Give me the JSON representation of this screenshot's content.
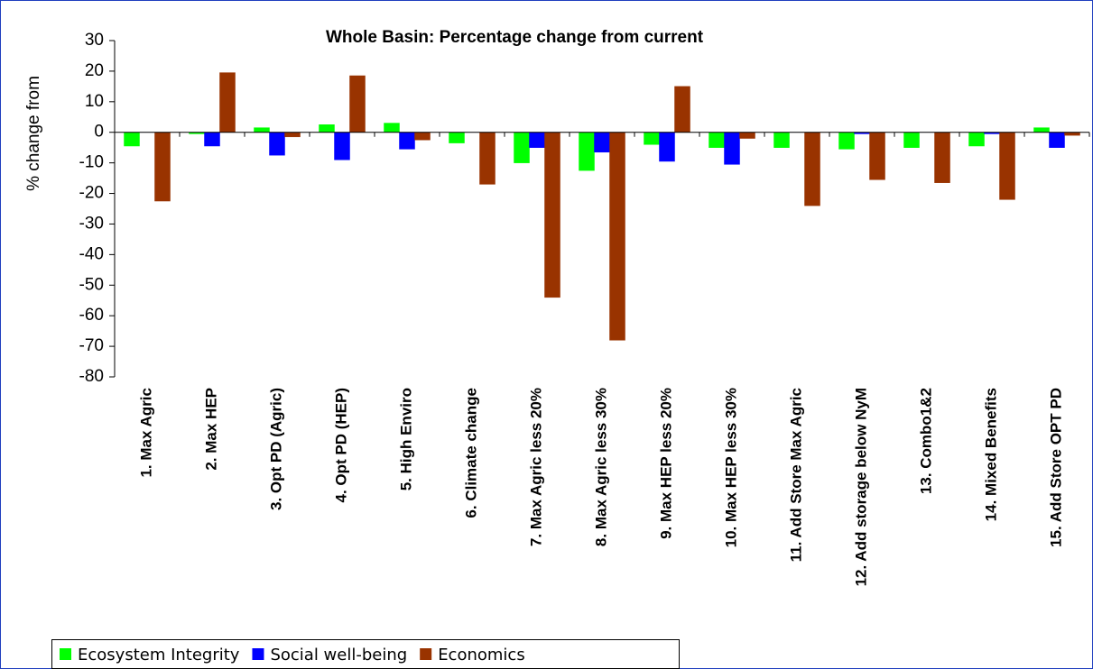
{
  "chart_data": {
    "type": "bar",
    "title": "Whole Basin: Percentage change from current",
    "y_label": "% change from",
    "categories": [
      "1. Max Agric",
      "2. Max HEP",
      "3. Opt PD (Agric)",
      "4. Opt PD (HEP)",
      "5. High Enviro",
      "6. Climate change",
      "7. Max Agric less 20%",
      "8. Max Agric less 30%",
      "9. Max HEP less 20%",
      "10. Max HEP less 30%",
      "11. Add Store Max Agric",
      "12. Add storage below NyM",
      "13. Combo1&2",
      "14. Mixed Benefits",
      "15. Add Store OPT PD"
    ],
    "series": [
      {
        "name": "Ecosystem Integrity",
        "color": "#00ff00",
        "values": [
          -4.5,
          -0.5,
          1.5,
          2.5,
          3,
          -3.5,
          -10,
          -12.5,
          -4,
          -5,
          -5,
          -5.5,
          -5,
          -4.5,
          1.5
        ]
      },
      {
        "name": "Social well-being",
        "color": "#0000ff",
        "values": [
          0,
          -4.5,
          -7.5,
          -9,
          -5.5,
          0,
          -5,
          -6.5,
          -9.5,
          -10.5,
          0,
          -0.5,
          0,
          -0.5,
          -5
        ]
      },
      {
        "name": "Economics",
        "color": "#993300",
        "values": [
          -22.5,
          19.5,
          -1.5,
          18.5,
          -2.5,
          -17,
          -54,
          -68,
          15,
          -2,
          -24,
          -15.5,
          -16.5,
          -22,
          -1
        ]
      }
    ],
    "ylim": [
      -80,
      30
    ],
    "yticks": [
      30,
      20,
      10,
      0,
      -10,
      -20,
      -30,
      -40,
      -50,
      -60,
      -70,
      -80
    ],
    "grid": false
  }
}
